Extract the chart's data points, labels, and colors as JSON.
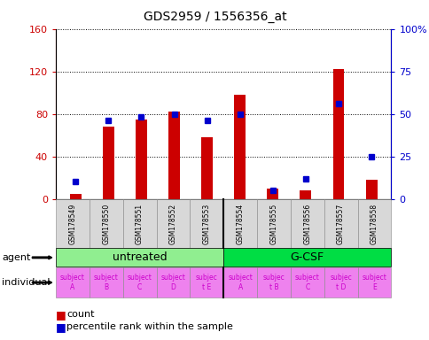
{
  "title": "GDS2959 / 1556356_at",
  "samples": [
    "GSM178549",
    "GSM178550",
    "GSM178551",
    "GSM178552",
    "GSM178553",
    "GSM178554",
    "GSM178555",
    "GSM178556",
    "GSM178557",
    "GSM178558"
  ],
  "counts": [
    5,
    68,
    75,
    82,
    58,
    98,
    10,
    8,
    122,
    18
  ],
  "percentile_ranks": [
    10,
    46,
    48,
    50,
    46,
    50,
    5,
    12,
    56,
    25
  ],
  "ylim_left": [
    0,
    160
  ],
  "ylim_right": [
    0,
    100
  ],
  "yticks_left": [
    0,
    40,
    80,
    120,
    160
  ],
  "yticks_right": [
    0,
    25,
    50,
    75,
    100
  ],
  "ytick_labels_left": [
    "0",
    "40",
    "80",
    "120",
    "160"
  ],
  "ytick_labels_right": [
    "0",
    "25",
    "50",
    "75",
    "100%"
  ],
  "agent_groups": [
    {
      "label": "untreated",
      "start": 0,
      "end": 5,
      "color": "#90ee90"
    },
    {
      "label": "G-CSF",
      "start": 5,
      "end": 10,
      "color": "#00dd44"
    }
  ],
  "individual_labels": [
    "subject\nA",
    "subject\nB",
    "subject\nC",
    "subject\nD",
    "subjec\nt E",
    "subject\nA",
    "subjec\nt B",
    "subject\nC",
    "subjec\nt D",
    "subject\nE"
  ],
  "bar_color": "#cc0000",
  "dot_color": "#0000cc",
  "left_tick_color": "#cc0000",
  "right_tick_color": "#0000cc",
  "individual_label_color": "#cc00cc",
  "individual_bg_color": "#ee82ee"
}
